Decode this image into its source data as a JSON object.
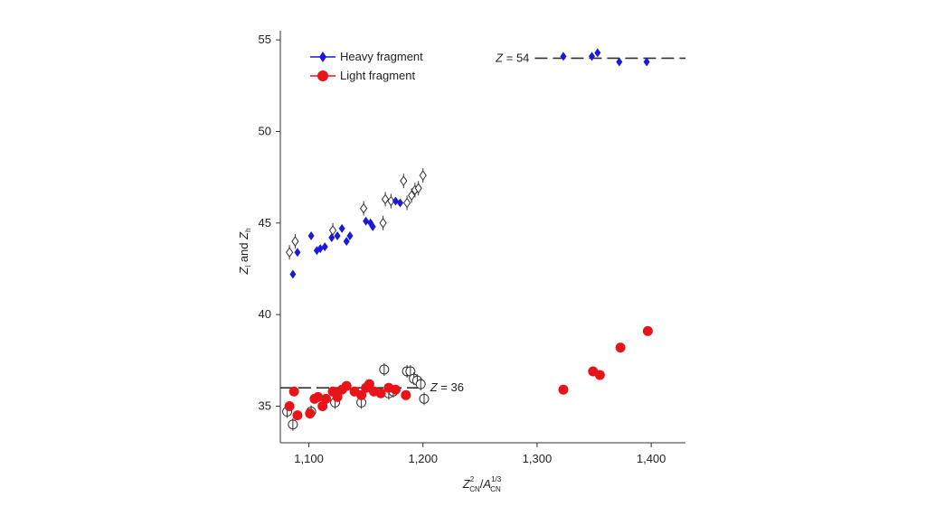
{
  "chart_data": {
    "type": "scatter",
    "title": "",
    "xlabel": {
      "base": "Z",
      "sup": "2",
      "sub": "CN",
      "sep": "/",
      "base2": "A",
      "sup2": "1/3",
      "sub2": "CN"
    },
    "ylabel": {
      "p1": "Z",
      "s1": "l",
      "mid": " and ",
      "p2": "Z",
      "s2": "h"
    },
    "xlim": [
      1075,
      1430
    ],
    "ylim": [
      33,
      55.5
    ],
    "xticks": [
      1100,
      1200,
      1300,
      1400
    ],
    "xtick_labels": [
      "1,100",
      "1,200",
      "1,300",
      "1,400"
    ],
    "yticks": [
      35,
      40,
      45,
      50,
      55
    ],
    "ytick_labels": [
      "35",
      "40",
      "45",
      "50",
      "55"
    ],
    "grid": false,
    "legend_position": "top-left",
    "colors": {
      "heavy": "#1a1adb",
      "light": "#e8141a",
      "axis": "#333333",
      "open": "#333333"
    },
    "reference_lines": [
      {
        "y": 54,
        "x_from": 1298,
        "x_to": 1430,
        "label": "Z = 54",
        "label_side": "left"
      },
      {
        "y": 36,
        "x_from": 1075,
        "x_to": 1200,
        "label": "Z = 36",
        "label_side": "right"
      }
    ],
    "series": [
      {
        "name": "Heavy fragment",
        "marker": "diamond-filled",
        "color": "#1a1adb",
        "x": [
          1086,
          1090,
          1102,
          1107,
          1110,
          1114,
          1120,
          1125,
          1129,
          1133,
          1136,
          1150,
          1154,
          1156,
          1176,
          1180,
          1323,
          1348,
          1353,
          1372,
          1396
        ],
        "y": [
          42.2,
          43.4,
          44.3,
          43.5,
          43.6,
          43.7,
          44.2,
          44.3,
          44.7,
          44.0,
          44.3,
          45.1,
          45.0,
          44.8,
          46.2,
          46.1,
          54.1,
          54.1,
          54.3,
          53.8,
          53.8
        ]
      },
      {
        "name": "Light fragment",
        "marker": "circle-filled",
        "color": "#e8141a",
        "x": [
          1083,
          1087,
          1090,
          1101,
          1105,
          1108,
          1112,
          1115,
          1121,
          1125,
          1129,
          1133,
          1140,
          1146,
          1150,
          1153,
          1157,
          1163,
          1170,
          1176,
          1185,
          1323,
          1349,
          1355,
          1373,
          1397
        ],
        "y": [
          35.0,
          35.8,
          34.5,
          34.6,
          35.4,
          35.5,
          35.0,
          35.4,
          35.8,
          35.5,
          35.9,
          36.1,
          35.8,
          35.6,
          36.0,
          36.2,
          35.8,
          35.7,
          36.0,
          35.9,
          35.6,
          35.9,
          36.9,
          36.7,
          38.2,
          39.1
        ]
      },
      {
        "name": "",
        "marker": "diamond-open",
        "color": "#333333",
        "x": [
          1083,
          1088,
          1121,
          1148,
          1165,
          1167,
          1172,
          1183,
          1186,
          1190,
          1193,
          1196,
          1200
        ],
        "y": [
          43.4,
          44.0,
          44.6,
          45.8,
          45.0,
          46.3,
          46.2,
          47.3,
          46.1,
          46.5,
          46.8,
          46.9,
          47.6
        ]
      },
      {
        "name": "",
        "marker": "circle-open",
        "color": "#333333",
        "x": [
          1081,
          1086,
          1102,
          1123,
          1146,
          1166,
          1170,
          1174,
          1186,
          1189,
          1192,
          1195,
          1198,
          1201
        ],
        "y": [
          34.7,
          34.0,
          34.7,
          35.2,
          35.2,
          37.0,
          35.7,
          35.8,
          36.9,
          36.9,
          36.5,
          36.4,
          36.2,
          35.4
        ]
      }
    ]
  }
}
